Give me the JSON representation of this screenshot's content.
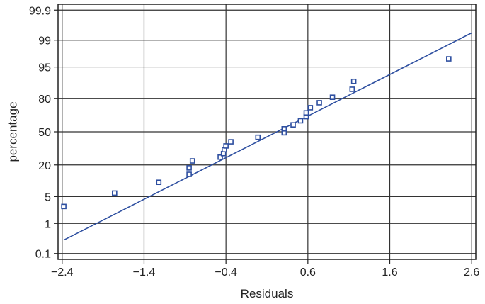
{
  "chart_data": {
    "type": "scatter",
    "title": "",
    "xlabel": "Residuals",
    "ylabel": "percentage",
    "y_scale": "normal-probability",
    "xlim": [
      -2.45,
      2.65
    ],
    "ylim": [
      0.06,
      99.94
    ],
    "grid": true,
    "x_ticks": [
      -2.4,
      -1.4,
      -0.4,
      0.6,
      1.6,
      2.6
    ],
    "x_tick_labels": [
      "−2.4",
      "−1.4",
      "−0.4",
      "0.6",
      "1.6",
      "2.6"
    ],
    "y_ticks": [
      0.1,
      1,
      5,
      20,
      50,
      80,
      95,
      99,
      99.9
    ],
    "y_tick_labels": [
      "0.1",
      "1",
      "5",
      "20",
      "50",
      "80",
      "95",
      "99",
      "99.9"
    ],
    "colors": {
      "series": "#2e4fa0",
      "grid": "#333333",
      "frame": "#222222"
    },
    "points": [
      {
        "x": -2.38,
        "y": 2.9
      },
      {
        "x": -1.76,
        "y": 6.0
      },
      {
        "x": -1.22,
        "y": 10.0
      },
      {
        "x": -0.85,
        "y": 14.0
      },
      {
        "x": -0.85,
        "y": 18.0
      },
      {
        "x": -0.81,
        "y": 23.0
      },
      {
        "x": -0.47,
        "y": 26.0
      },
      {
        "x": -0.43,
        "y": 29.0
      },
      {
        "x": -0.42,
        "y": 32.5
      },
      {
        "x": -0.4,
        "y": 36.0
      },
      {
        "x": -0.34,
        "y": 40.0
      },
      {
        "x": -0.01,
        "y": 44.5
      },
      {
        "x": 0.31,
        "y": 49.0
      },
      {
        "x": 0.31,
        "y": 53.0
      },
      {
        "x": 0.42,
        "y": 57.0
      },
      {
        "x": 0.51,
        "y": 61.0
      },
      {
        "x": 0.58,
        "y": 65.0
      },
      {
        "x": 0.58,
        "y": 68.5
      },
      {
        "x": 0.63,
        "y": 73.0
      },
      {
        "x": 0.74,
        "y": 77.0
      },
      {
        "x": 0.9,
        "y": 81.0
      },
      {
        "x": 1.14,
        "y": 86.0
      },
      {
        "x": 1.16,
        "y": 90.0
      },
      {
        "x": 2.32,
        "y": 96.8
      }
    ],
    "fit_line": {
      "x": [
        -2.38,
        2.6
      ],
      "y": [
        0.3,
        99.4
      ]
    }
  }
}
